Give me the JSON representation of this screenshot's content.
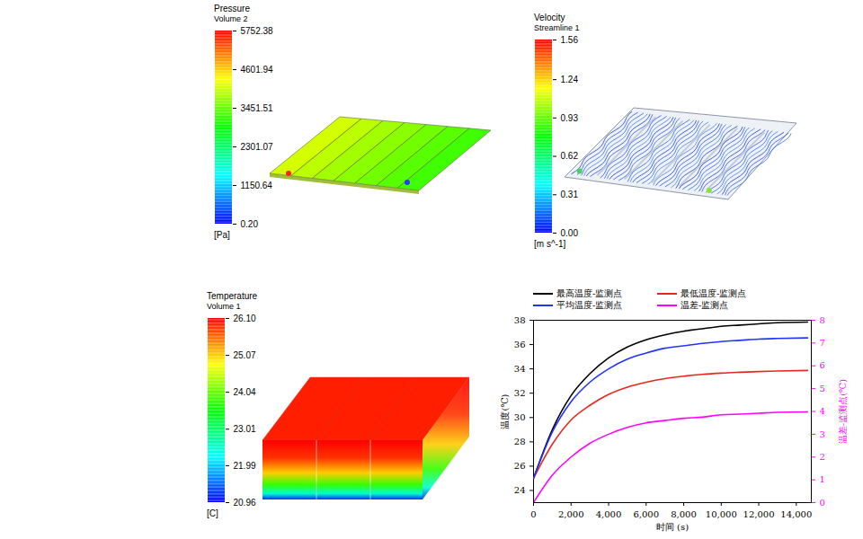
{
  "panels": [
    {
      "title": "Pressure",
      "subtitle": "Volume 2",
      "unit": "[Pa]",
      "colorbar": {
        "range": [
          0.2,
          5752.38
        ],
        "ticks": [
          {
            "value": 0.2,
            "label": "0.20"
          },
          1150.64,
          2301.07,
          3451.51,
          4601.94,
          5752.38
        ]
      }
    },
    {
      "title": "Velocity",
      "subtitle": "Streamline 1",
      "unit": "[m s^-1]",
      "colorbar": {
        "range": [
          0,
          1.56
        ],
        "ticks": [
          {
            "value": 0,
            "label": "0.00"
          },
          0.31,
          0.62,
          0.93,
          1.24,
          1.56
        ]
      }
    },
    {
      "title": "Temperature",
      "subtitle": "Volume 1",
      "unit": "[C]",
      "colorbar": {
        "range": [
          20.96,
          26.1
        ],
        "ticks": [
          20.96,
          21.99,
          23.01,
          24.04,
          25.07,
          {
            "value": 26.1,
            "label": "26.10"
          }
        ]
      }
    }
  ],
  "chart_data": {
    "type": "line",
    "xlabel": "时间 (s)",
    "ylabel": "温度(℃)",
    "y2label": "温差-监测点(℃)",
    "x": [
      0,
      1000,
      2000,
      3000,
      4000,
      5000,
      6000,
      7000,
      8000,
      9000,
      10000,
      11000,
      12000,
      13000,
      14600
    ],
    "xlim": [
      0,
      14800
    ],
    "xticks": [
      0,
      2000,
      4000,
      6000,
      8000,
      10000,
      12000,
      14000
    ],
    "ylim": [
      23,
      38
    ],
    "yticks": [
      24,
      26,
      28,
      30,
      32,
      34,
      36,
      38
    ],
    "y2lim": [
      0,
      8
    ],
    "y2ticks": [
      0,
      1,
      2,
      3,
      4,
      5,
      6,
      7,
      8
    ],
    "grid": false,
    "legend": "top",
    "series": [
      {
        "name": "最高温度-监测点",
        "color": "#000000",
        "values": [
          25.0,
          29.0,
          31.8,
          33.6,
          34.9,
          35.8,
          36.4,
          36.8,
          37.1,
          37.3,
          37.5,
          37.6,
          37.7,
          37.8,
          37.85
        ]
      },
      {
        "name": "最低温度-监测点",
        "color": "#e8281e",
        "values": [
          25.0,
          27.8,
          29.8,
          31.0,
          31.9,
          32.5,
          32.9,
          33.2,
          33.4,
          33.55,
          33.65,
          33.72,
          33.78,
          33.82,
          33.87
        ]
      },
      {
        "name": "平均温度-监测点",
        "color": "#2233ff",
        "values": [
          25.0,
          28.8,
          31.3,
          32.9,
          34.0,
          34.8,
          35.3,
          35.7,
          35.9,
          36.1,
          36.25,
          36.35,
          36.45,
          36.5,
          36.55
        ]
      },
      {
        "name": "温差-监测点",
        "color": "#ff00ff",
        "axis": "y2",
        "values": [
          0,
          1.2,
          2.0,
          2.6,
          3.0,
          3.3,
          3.5,
          3.6,
          3.7,
          3.75,
          3.85,
          3.88,
          3.92,
          3.96,
          3.98
        ]
      }
    ]
  }
}
